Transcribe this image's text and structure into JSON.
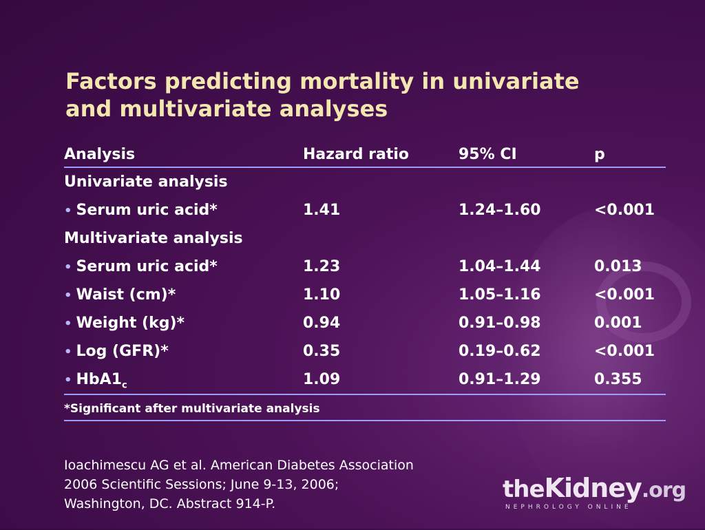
{
  "slide": {
    "title_line1": "Factors predicting mortality in univariate",
    "title_line2": "and multivariate analyses"
  },
  "table": {
    "headers": [
      "Analysis",
      "Hazard ratio",
      "95% CI",
      "p"
    ],
    "sections": [
      {
        "label": "Univariate analysis",
        "rows": [
          {
            "factor": "Serum uric acid*",
            "hr": "1.41",
            "ci": "1.24–1.60",
            "p": "<0.001"
          }
        ]
      },
      {
        "label": "Multivariate analysis",
        "rows": [
          {
            "factor": "Serum uric acid*",
            "hr": "1.23",
            "ci": "1.04–1.44",
            "p": "0.013"
          },
          {
            "factor": "Waist (cm)*",
            "hr": "1.10",
            "ci": "1.05–1.16",
            "p": "<0.001"
          },
          {
            "factor": "Weight (kg)*",
            "hr": "0.94",
            "ci": "0.91–0.98",
            "p": "0.001"
          },
          {
            "factor": "Log (GFR)*",
            "hr": "0.35",
            "ci": "0.19–0.62",
            "p": "<0.001"
          },
          {
            "factor": "HbA1",
            "factor_sub": "c",
            "hr": "1.09",
            "ci": "0.91–1.29",
            "p": "0.355"
          }
        ]
      }
    ],
    "bullet": "•",
    "footnote": "*Significant after multivariate analysis"
  },
  "citation": {
    "line1": "Ioachimescu AG et al. American Diabetes Association",
    "line2": "2006 Scientific Sessions; June 9-13, 2006;",
    "line3": "Washington, DC. Abstract 914-P."
  },
  "logo": {
    "the": "the",
    "kidney": "Kidney",
    "org": ".org",
    "tagline": "NEPHROLOGY ONLINE"
  },
  "colors": {
    "background": "#4e1358",
    "title": "#f3e7b0",
    "rule": "#9f9cff",
    "bullet": "#b9b6ff"
  }
}
